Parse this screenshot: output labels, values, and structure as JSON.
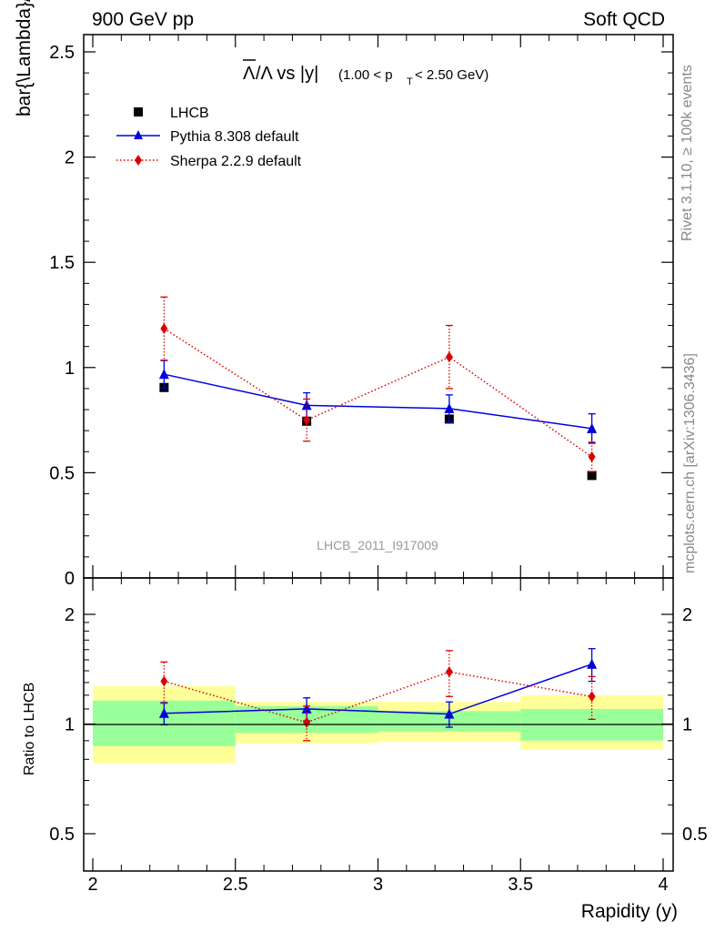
{
  "header": {
    "left": "900 GeV pp",
    "right": "Soft QCD"
  },
  "side": {
    "rivet": "Rivet 3.1.10, ≥ 100k events",
    "mcplots": "mcplots.cern.ch [arXiv:1306.3436]"
  },
  "chart_data": [
    {
      "type": "scatter",
      "panel": "main",
      "title": "Λ̄/Λ vs |y|(1.00 < p_T < 2.50 GeV)",
      "title_parts": {
        "lambda_bar": "Λ",
        "slash_lambda": "/Λ vs |y|",
        "range_open": "(1.00 < p",
        "pt_sub": "T",
        "range_close": " < 2.50 GeV)"
      },
      "ylabel": "bar{\\Lambda}/\\Lambda",
      "xlim": [
        2,
        4
      ],
      "ylim": [
        0,
        2.6
      ],
      "yticks": [
        0,
        0.5,
        1,
        1.5,
        2,
        2.5
      ],
      "ytick_labels": [
        "0",
        "0.5",
        "1",
        "1.5",
        "2",
        "2.5"
      ],
      "watermark": "LHCB_2011_I917009",
      "legend_position": "top-left",
      "x": [
        2.25,
        2.75,
        3.25,
        3.75
      ],
      "series": [
        {
          "name": "LHCB",
          "style": "square",
          "color": "#000000",
          "values": [
            0.905,
            0.745,
            0.755,
            0.487
          ],
          "errors": [
            0.01,
            0.01,
            0.01,
            0.01
          ]
        },
        {
          "name": "Pythia 8.308 default",
          "style": "line-triangle",
          "color": "#0000dd",
          "values": [
            0.968,
            0.82,
            0.805,
            0.71
          ],
          "errors": [
            0.065,
            0.06,
            0.065,
            0.07
          ]
        },
        {
          "name": "Sherpa 2.2.9 default",
          "style": "dotted-diamond",
          "color": "#dd0000",
          "values": [
            1.185,
            0.75,
            1.05,
            0.575
          ],
          "errors": [
            0.15,
            0.1,
            0.15,
            0.07
          ]
        }
      ]
    },
    {
      "type": "scatter",
      "panel": "ratio",
      "ylabel": "Ratio to LHCB",
      "xlabel": "Rapidity (y)",
      "xlim": [
        2,
        4
      ],
      "ylim": [
        0.42,
        2.3
      ],
      "yscale": "log",
      "xticks": [
        2,
        2.5,
        3,
        3.5,
        4
      ],
      "xtick_labels": [
        "2",
        "2.5",
        "3",
        "3.5",
        "4"
      ],
      "yticks": [
        0.5,
        1,
        2
      ],
      "ytick_labels": [
        "0.5",
        "1",
        "2"
      ],
      "x": [
        2.25,
        2.75,
        3.25,
        3.75
      ],
      "bands": [
        {
          "xrange": [
            2.0,
            2.5
          ],
          "inner": [
            0.87,
            1.16
          ],
          "outer": [
            0.78,
            1.27
          ]
        },
        {
          "xrange": [
            2.5,
            3.0
          ],
          "inner": [
            0.945,
            1.12
          ],
          "outer": [
            0.885,
            1.15
          ]
        },
        {
          "xrange": [
            3.0,
            3.5
          ],
          "inner": [
            0.955,
            1.085
          ],
          "outer": [
            0.895,
            1.15
          ]
        },
        {
          "xrange": [
            3.5,
            4.0
          ],
          "inner": [
            0.9,
            1.1
          ],
          "outer": [
            0.85,
            1.2
          ]
        }
      ],
      "series": [
        {
          "name": "Pythia 8.308 default",
          "style": "line-triangle",
          "color": "#0000dd",
          "values": [
            1.07,
            1.1,
            1.065,
            1.46
          ],
          "errors": [
            0.075,
            0.08,
            0.085,
            0.15
          ]
        },
        {
          "name": "Sherpa 2.2.9 default",
          "style": "dotted-diamond",
          "color": "#dd0000",
          "values": [
            1.31,
            1.01,
            1.39,
            1.19
          ],
          "errors": [
            0.17,
            0.11,
            0.2,
            0.16
          ]
        }
      ]
    }
  ]
}
